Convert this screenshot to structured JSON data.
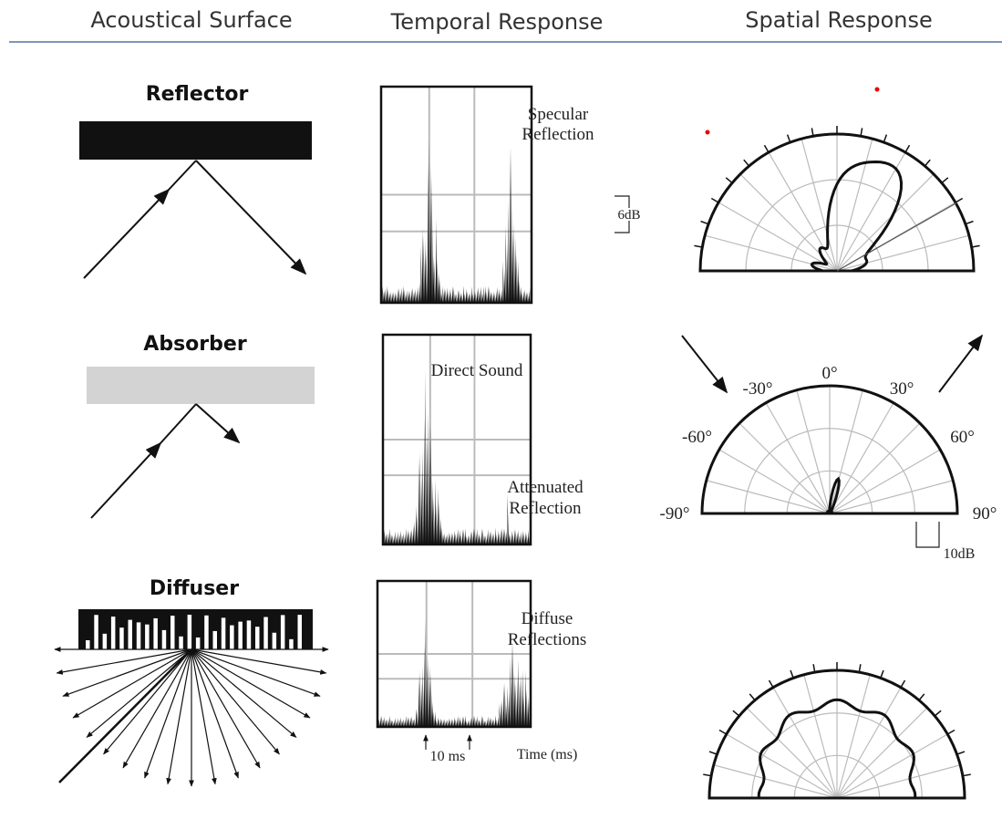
{
  "header": {
    "columns": [
      "Acoustical Surface",
      "Temporal Response",
      "Spatial Response"
    ]
  },
  "rows": [
    {
      "surface": "Reflector",
      "temporal_lines": [
        "Specular",
        "Reflection"
      ],
      "scale": "6dB"
    },
    {
      "surface": "Absorber",
      "temporal_top": "Direct Sound",
      "temporal_lines": [
        "Attenuated",
        "Reflection"
      ],
      "angles": [
        "-90°",
        "-60°",
        "-30°",
        "0°",
        "30°",
        "60°",
        "90°"
      ],
      "scale": "10dB"
    },
    {
      "surface": "Diffuser",
      "temporal_lines": [
        "Diffuse",
        "Reflections"
      ]
    }
  ],
  "time_axis": {
    "tick": "10 ms",
    "label": "Time (ms)"
  }
}
